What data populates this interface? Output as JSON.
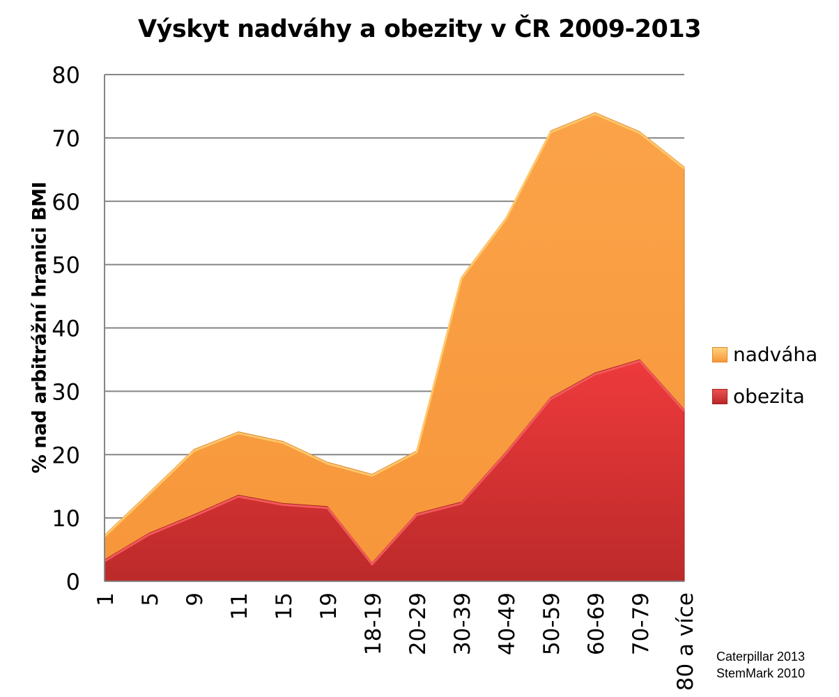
{
  "chart_data": {
    "type": "area",
    "title": "Výskyt nadváhy a obezity  v ČR 2009-2013",
    "xlabel": "",
    "ylabel": "% nad arbitrážní hranici  BMI",
    "ylim": [
      0,
      80
    ],
    "yticks": [
      "0",
      "10",
      "20",
      "30",
      "40",
      "50",
      "60",
      "70",
      "80"
    ],
    "grid": true,
    "legend_position": "right",
    "categories": [
      "1",
      "5",
      "9",
      "11",
      "15",
      "19",
      "18-19",
      "20-29",
      "30-39",
      "40-49",
      "50-59",
      "60-69",
      "70-79",
      "80 a více"
    ],
    "series": [
      {
        "name": "nadváha",
        "color": "#f99a3c",
        "values": [
          7.3,
          14.0,
          20.8,
          23.6,
          22.1,
          18.8,
          16.9,
          20.6,
          48.0,
          57.4,
          71.1,
          74.0,
          71.0,
          65.4
        ]
      },
      {
        "name": "obezita",
        "color": "#d83232",
        "values": [
          3.4,
          7.6,
          10.5,
          13.6,
          12.3,
          11.8,
          2.9,
          10.7,
          12.5,
          20.4,
          29.0,
          32.9,
          35.0,
          27.1
        ]
      }
    ],
    "source_note": [
      "Caterpillar 2013",
      "StemMark 2010"
    ]
  }
}
